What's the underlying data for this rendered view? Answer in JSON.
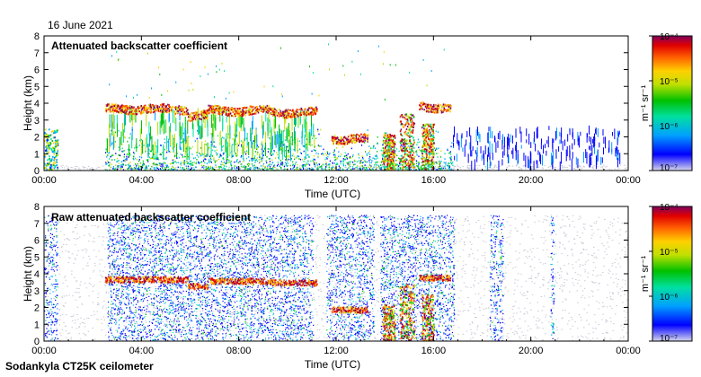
{
  "date": "16 June 2021",
  "instrument": "Sodankyla CT25K ceilometer",
  "colorbar_unit": "m⁻¹ sr⁻¹",
  "colors": {
    "noise_gray": "#c8c8d6",
    "scale": [
      "#d6d6ee",
      "#0000ff",
      "#00a0ff",
      "#00e0a0",
      "#00c000",
      "#c0e000",
      "#ffd000",
      "#ff6000",
      "#e00000",
      "#800060"
    ]
  },
  "chart_data": [
    {
      "type": "heatmap",
      "title": "Attenuated backscatter coefficient",
      "xlabel": "Time (UTC)",
      "ylabel": "Height (km)",
      "xlim": [
        0,
        24
      ],
      "ylim": [
        0,
        8
      ],
      "xticks": [
        "00:00",
        "04:00",
        "08:00",
        "12:00",
        "16:00",
        "20:00",
        "00:00"
      ],
      "yticks": [
        "0",
        "1",
        "2",
        "3",
        "4",
        "5",
        "6",
        "7",
        "8"
      ],
      "colorbar": {
        "ticks": [
          "10⁻⁴",
          "10⁻⁵",
          "10⁻⁶",
          "10⁻⁷"
        ],
        "range": [
          1e-07,
          0.0001
        ],
        "scale": "log"
      },
      "cloud_layers": [
        {
          "start": 2.5,
          "end": 5.9,
          "height": 3.7
        },
        {
          "start": 5.9,
          "end": 6.7,
          "height": 3.3
        },
        {
          "start": 6.7,
          "end": 9.3,
          "height": 3.6
        },
        {
          "start": 9.3,
          "end": 11.2,
          "height": 3.5
        },
        {
          "start": 11.8,
          "end": 13.3,
          "height": 1.9
        },
        {
          "start": 15.4,
          "end": 16.7,
          "height": 3.8
        }
      ],
      "precipitation_events": [
        {
          "start": 13.9,
          "end": 14.4,
          "top": 2.2
        },
        {
          "start": 14.6,
          "end": 15.2,
          "top": 3.4
        },
        {
          "start": 15.5,
          "end": 16.0,
          "top": 2.8
        }
      ]
    },
    {
      "type": "heatmap",
      "title": "Raw attenuated backscatter coefficient",
      "xlabel": "Time (UTC)",
      "ylabel": "Height (km)",
      "xlim": [
        0,
        24
      ],
      "ylim": [
        0,
        8
      ],
      "xticks": [
        "00:00",
        "04:00",
        "08:00",
        "12:00",
        "16:00",
        "20:00",
        "00:00"
      ],
      "yticks": [
        "0",
        "1",
        "2",
        "3",
        "4",
        "5",
        "6",
        "7",
        "8"
      ],
      "colorbar": {
        "ticks": [
          "10⁻⁴",
          "10⁻⁵",
          "10⁻⁶",
          "10⁻⁷"
        ],
        "range": [
          1e-07,
          0.0001
        ],
        "scale": "log"
      },
      "noise_ceiling": 7.5,
      "dense_noise_periods": [
        {
          "start": 0.0,
          "end": 0.5
        },
        {
          "start": 2.6,
          "end": 11.0
        },
        {
          "start": 11.6,
          "end": 13.5
        },
        {
          "start": 13.8,
          "end": 16.8
        },
        {
          "start": 18.3,
          "end": 18.8
        },
        {
          "start": 20.8,
          "end": 20.9
        }
      ],
      "cloud_layers": [
        {
          "start": 2.5,
          "end": 5.9,
          "height": 3.7
        },
        {
          "start": 5.9,
          "end": 6.7,
          "height": 3.3
        },
        {
          "start": 6.7,
          "end": 9.3,
          "height": 3.6
        },
        {
          "start": 9.3,
          "end": 11.2,
          "height": 3.5
        },
        {
          "start": 11.8,
          "end": 13.3,
          "height": 1.9
        },
        {
          "start": 15.4,
          "end": 16.7,
          "height": 3.8
        }
      ]
    }
  ]
}
